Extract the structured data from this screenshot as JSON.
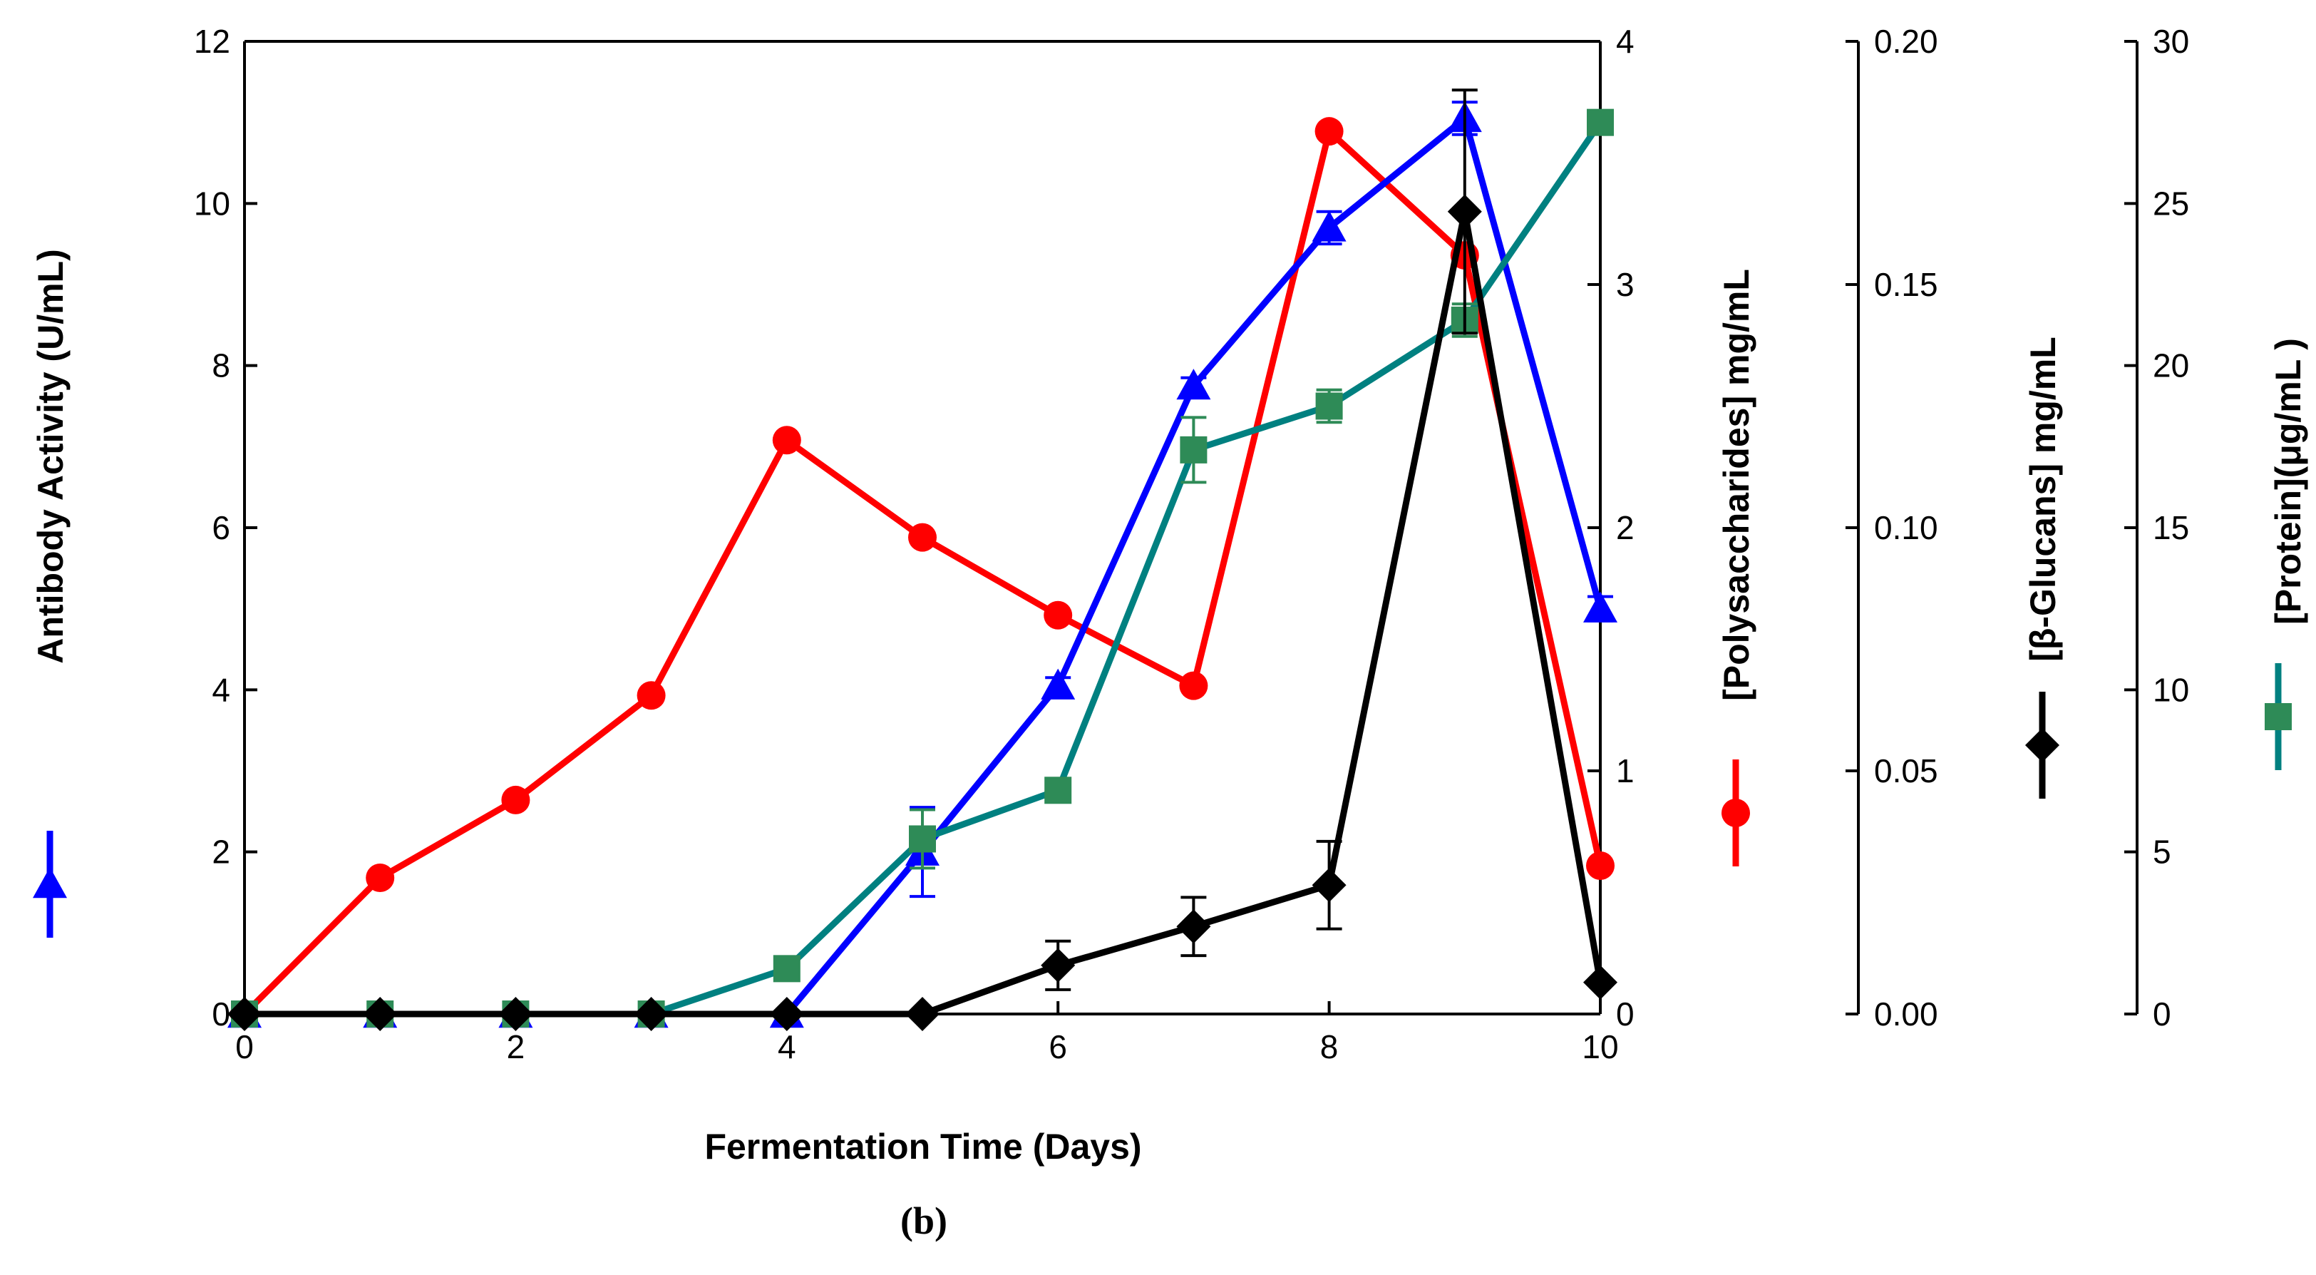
{
  "chart_data": {
    "type": "line",
    "caption": "(b)",
    "xlabel": "Fermentation Time (Days)",
    "xlim": [
      0,
      10
    ],
    "xticks": [
      0,
      2,
      4,
      6,
      8,
      10
    ],
    "x": [
      0,
      1,
      2,
      3,
      4,
      5,
      6,
      7,
      8,
      9,
      10
    ],
    "axes": [
      {
        "id": "antibody",
        "label": "Antibody Activity (U/mL)",
        "position": "left",
        "ylim": [
          0,
          12
        ],
        "ticks": [
          "0",
          "2",
          "4",
          "6",
          "8",
          "10",
          "12"
        ]
      },
      {
        "id": "poly",
        "label": "[Polysaccharides] mg/mL",
        "position": "right",
        "ylim": [
          0,
          4
        ],
        "ticks": [
          "0",
          "1",
          "2",
          "3",
          "4"
        ]
      },
      {
        "id": "glucan",
        "label": "[β-Glucans] mg/mL",
        "position": "right-2",
        "ylim": [
          0,
          0.2
        ],
        "ticks": [
          "0.00",
          "0.05",
          "0.10",
          "0.15",
          "0.20"
        ]
      },
      {
        "id": "protein",
        "label": "[Protein](μg/mL )",
        "position": "right-3",
        "ylim": [
          0,
          30
        ],
        "ticks": [
          "0",
          "5",
          "10",
          "15",
          "20",
          "25",
          "30"
        ]
      }
    ],
    "series": [
      {
        "axis": "poly",
        "marker": "circle",
        "color": "#ff0000",
        "values": [
          0,
          0.56,
          0.88,
          1.31,
          2.36,
          1.96,
          1.64,
          1.35,
          3.63,
          3.12,
          0.61
        ],
        "errors": [
          0,
          0,
          0,
          0,
          0,
          0,
          0,
          0,
          0,
          0,
          0
        ]
      },
      {
        "axis": "antibody",
        "marker": "triangle",
        "color": "#0000ff",
        "values": [
          0,
          0,
          0,
          0,
          0,
          2.0,
          4.05,
          7.75,
          9.7,
          11.05,
          5.0
        ],
        "errors": [
          0,
          0,
          0,
          0,
          0,
          0.55,
          0.1,
          0.1,
          0.2,
          0.2,
          0.15
        ]
      },
      {
        "axis": "protein",
        "marker": "square",
        "color": "#2e8b57",
        "line_color": "#008080",
        "values": [
          0,
          0,
          0,
          0,
          1.4,
          5.4,
          6.9,
          17.4,
          18.75,
          21.4,
          27.5
        ],
        "errors": [
          0,
          0,
          0,
          0,
          0,
          0.9,
          0.3,
          1.0,
          0.5,
          0.5,
          0
        ]
      },
      {
        "axis": "glucan",
        "marker": "diamond",
        "color": "#000000",
        "values": [
          0,
          0,
          0,
          0,
          0,
          0,
          0.01,
          0.018,
          0.0265,
          0.165,
          0.0065
        ],
        "errors": [
          0,
          0,
          0,
          0,
          0,
          0,
          0.005,
          0.006,
          0.009,
          0.025,
          0
        ]
      }
    ]
  }
}
